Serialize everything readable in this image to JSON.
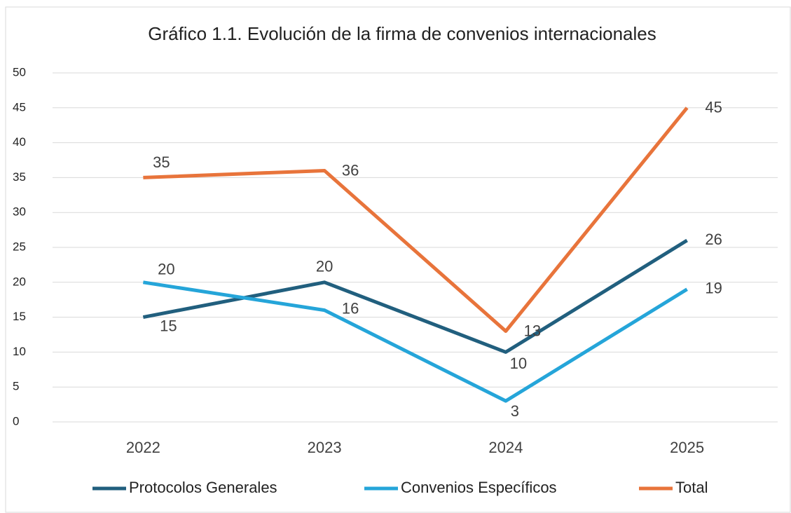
{
  "chart_data": {
    "type": "line",
    "title": "Gráfico 1.1. Evolución de la firma de convenios internacionales",
    "categories": [
      "2022",
      "2023",
      "2024",
      "2025"
    ],
    "series": [
      {
        "name": "Protocolos Generales",
        "color": "#215f7e",
        "values": [
          15,
          20,
          10,
          26
        ]
      },
      {
        "name": "Convenios Específicos",
        "color": "#25a5d9",
        "values": [
          20,
          16,
          3,
          19
        ]
      },
      {
        "name": "Total",
        "color": "#e8743b",
        "values": [
          35,
          36,
          13,
          45
        ]
      }
    ],
    "ylim": [
      0,
      50
    ],
    "yticks": [
      0,
      5,
      10,
      15,
      20,
      25,
      30,
      35,
      40,
      45,
      50
    ],
    "grid": true,
    "legend": "bottom"
  }
}
